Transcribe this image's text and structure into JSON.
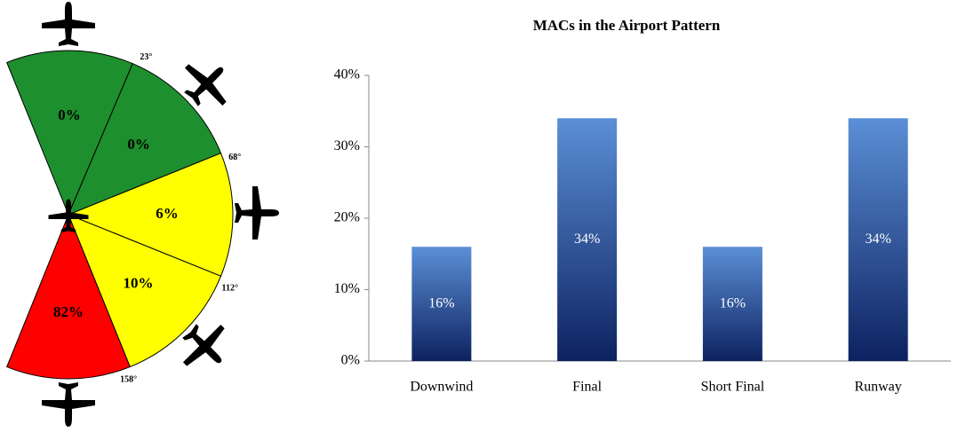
{
  "chart_data": [
    {
      "type": "sector",
      "values": [
        0,
        0,
        6,
        10,
        82
      ],
      "value_labels": [
        "0%",
        "0%",
        "6%",
        "10%",
        "82%"
      ],
      "colors": [
        "#1e8f2e",
        "#1e8f2e",
        "#ffff00",
        "#ffff00",
        "#ff0000"
      ],
      "boundaries": [
        {
          "value": 23,
          "label": "23°"
        },
        {
          "value": 68,
          "label": "68°"
        },
        {
          "value": 112,
          "label": "112°"
        },
        {
          "value": 158,
          "label": "158°"
        }
      ]
    },
    {
      "type": "bar",
      "title": "MACs in the Airport Pattern",
      "categories": [
        "Downwind",
        "Final",
        "Short Final",
        "Runway"
      ],
      "values": [
        16,
        34,
        16,
        34
      ],
      "value_labels": [
        "16%",
        "34%",
        "16%",
        "34%"
      ],
      "color": "#2c5aa0",
      "ylim": [
        0,
        40
      ],
      "yticks": [
        {
          "value": 0,
          "label": "0%"
        },
        {
          "value": 10,
          "label": "10%"
        },
        {
          "value": 20,
          "label": "20%"
        },
        {
          "value": 30,
          "label": "30%"
        },
        {
          "value": 40,
          "label": "40%"
        }
      ]
    }
  ]
}
